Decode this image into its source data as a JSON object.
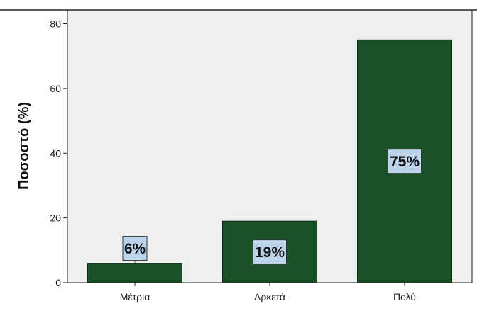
{
  "chart_data": {
    "type": "bar",
    "title": "",
    "xlabel": "",
    "ylabel": "Ποσοστό (%)",
    "categories": [
      "Μέτρια",
      "Αρκετά",
      "Πολύ"
    ],
    "values": [
      6,
      19,
      75
    ],
    "data_labels": [
      "6%",
      "19%",
      "75%"
    ],
    "ylim": [
      0,
      80
    ],
    "yticks": [
      0,
      20,
      40,
      60,
      80
    ],
    "ytick_labels": [
      "0",
      "20",
      "40",
      "60",
      "80"
    ],
    "grid": false,
    "colors": {
      "bar": "#1a5128",
      "plot_background": "#efefef",
      "label_box": "#bcd4ea"
    }
  }
}
